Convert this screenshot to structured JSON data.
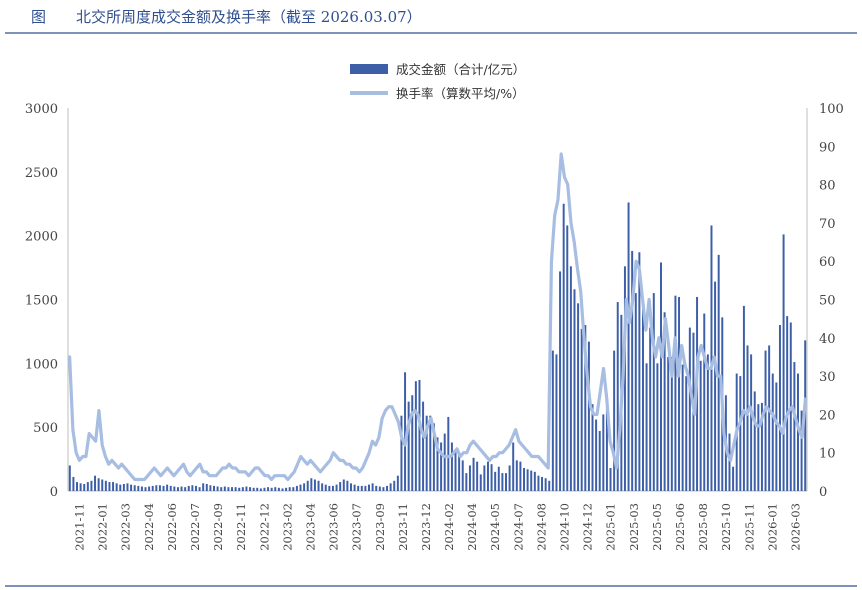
{
  "header": {
    "label": "图",
    "title": "北交所周度成交金额及换手率（截至 2026.03.07）"
  },
  "chart_data": {
    "type": "bar+line",
    "title": "北交所周度成交金额及换手率（截至 2026.03.07）",
    "legend_position": "top-center",
    "grid": false,
    "y_left": {
      "min": 0,
      "max": 3000,
      "ticks": [
        0,
        500,
        1000,
        1500,
        2000,
        2500,
        3000
      ]
    },
    "y_right": {
      "min": 0,
      "max": 100,
      "ticks": [
        0,
        10,
        20,
        30,
        40,
        50,
        60,
        70,
        80,
        90,
        100
      ]
    },
    "x_ticks": [
      "2021-11",
      "2022-01",
      "2022-03",
      "2022-04",
      "2022-06",
      "2022-07",
      "2022-09",
      "2022-11",
      "2022-12",
      "2023-02",
      "2023-04",
      "2023-06",
      "2023-07",
      "2023-09",
      "2023-11",
      "2023-12",
      "2024-02",
      "2024-04",
      "2024-05",
      "2024-07",
      "2024-08",
      "2024-10",
      "2024-12",
      "2025-01",
      "2025-03",
      "2025-05",
      "2025-06",
      "2025-08",
      "2025-10",
      "2025-11",
      "2026-01",
      "2026-03"
    ],
    "series": [
      {
        "name": "成交金额（合计/亿元）",
        "kind": "bar",
        "axis": "left",
        "color": "#3d5fa8",
        "values": [
          200,
          110,
          70,
          60,
          55,
          70,
          80,
          120,
          100,
          90,
          80,
          70,
          70,
          60,
          50,
          55,
          60,
          50,
          45,
          40,
          35,
          30,
          35,
          40,
          45,
          45,
          40,
          50,
          40,
          35,
          30,
          35,
          30,
          40,
          45,
          40,
          30,
          60,
          55,
          45,
          40,
          35,
          30,
          35,
          30,
          30,
          30,
          25,
          30,
          35,
          30,
          25,
          25,
          20,
          25,
          30,
          25,
          30,
          25,
          20,
          25,
          30,
          30,
          40,
          50,
          60,
          80,
          100,
          90,
          80,
          60,
          50,
          40,
          40,
          50,
          70,
          90,
          80,
          60,
          50,
          40,
          40,
          40,
          50,
          60,
          40,
          35,
          30,
          40,
          60,
          80,
          120,
          590,
          930,
          700,
          750,
          860,
          870,
          700,
          590,
          590,
          530,
          420,
          380,
          450,
          580,
          380,
          320,
          300,
          240,
          140,
          200,
          260,
          230,
          130,
          200,
          230,
          210,
          150,
          190,
          140,
          140,
          200,
          380,
          240,
          230,
          180,
          170,
          160,
          150,
          120,
          110,
          100,
          80,
          1100,
          1070,
          1720,
          2250,
          2080,
          1760,
          1580,
          1470,
          1270,
          1300,
          1170,
          680,
          560,
          470,
          600,
          650,
          180,
          1100,
          1480,
          1380,
          1760,
          2260,
          1880,
          1550,
          1870,
          1500,
          1000,
          1280,
          1550,
          1000,
          1790,
          1400,
          1050,
          1050,
          1530,
          1520,
          990,
          900,
          1280,
          1240,
          1520,
          1020,
          1390,
          1070,
          2080,
          1640,
          1850,
          1360,
          750,
          450,
          190,
          920,
          900,
          1450,
          1140,
          1070,
          780,
          680,
          690,
          1100,
          1140,
          920,
          850,
          1300,
          2010,
          1370,
          1320,
          1010,
          920,
          630,
          1180
        ]
      },
      {
        "name": "换手率（算数平均/%）",
        "kind": "line",
        "axis": "right",
        "color": "#a7bde2",
        "values": [
          35,
          16,
          10,
          8,
          9,
          9,
          15,
          14,
          13,
          21,
          12,
          9,
          7,
          8,
          7,
          6,
          7,
          6,
          5,
          4,
          3,
          3,
          3,
          3,
          4,
          5,
          6,
          5,
          4,
          5,
          6,
          5,
          4,
          5,
          6,
          7,
          5,
          4,
          5,
          6,
          7,
          5,
          5,
          4,
          4,
          4,
          5,
          6,
          6,
          7,
          6,
          6,
          5,
          5,
          5,
          4,
          5,
          6,
          6,
          5,
          4,
          4,
          3,
          4,
          4,
          4,
          4,
          3,
          4,
          5,
          7,
          9,
          8,
          7,
          8,
          7,
          6,
          5,
          6,
          7,
          8,
          10,
          9,
          8,
          8,
          7,
          7,
          6,
          6,
          5,
          6,
          8,
          10,
          13,
          12,
          14,
          19,
          21,
          22,
          22,
          20,
          18,
          14,
          12,
          17,
          20,
          21,
          20,
          16,
          14,
          17,
          19,
          15,
          11,
          10,
          9,
          9,
          9,
          10,
          11,
          9,
          10,
          10,
          12,
          13,
          12,
          11,
          10,
          9,
          8,
          9,
          9,
          10,
          10,
          11,
          12,
          14,
          16,
          13,
          12,
          11,
          10,
          9,
          9,
          9,
          8,
          7,
          6,
          60,
          72,
          76,
          88,
          82,
          80,
          70,
          65,
          58,
          52,
          40,
          30,
          22,
          20,
          20,
          26,
          32,
          24,
          13,
          10,
          6,
          16,
          30,
          50,
          44,
          50,
          60,
          58,
          50,
          42,
          50,
          40,
          35,
          40,
          35,
          45,
          38,
          30,
          40,
          30,
          38,
          33,
          30,
          25,
          20,
          35,
          38,
          35,
          32,
          32,
          35,
          30,
          30,
          15,
          10,
          8,
          12,
          16,
          18,
          21,
          20,
          22,
          19,
          17,
          17,
          20,
          22,
          21,
          20,
          18,
          17,
          15,
          19,
          21,
          22,
          19,
          16,
          14,
          24
        ]
      }
    ]
  },
  "legend": {
    "bar_label": "成交金额（合计/亿元）",
    "line_label": "换手率（算数平均/%）"
  }
}
